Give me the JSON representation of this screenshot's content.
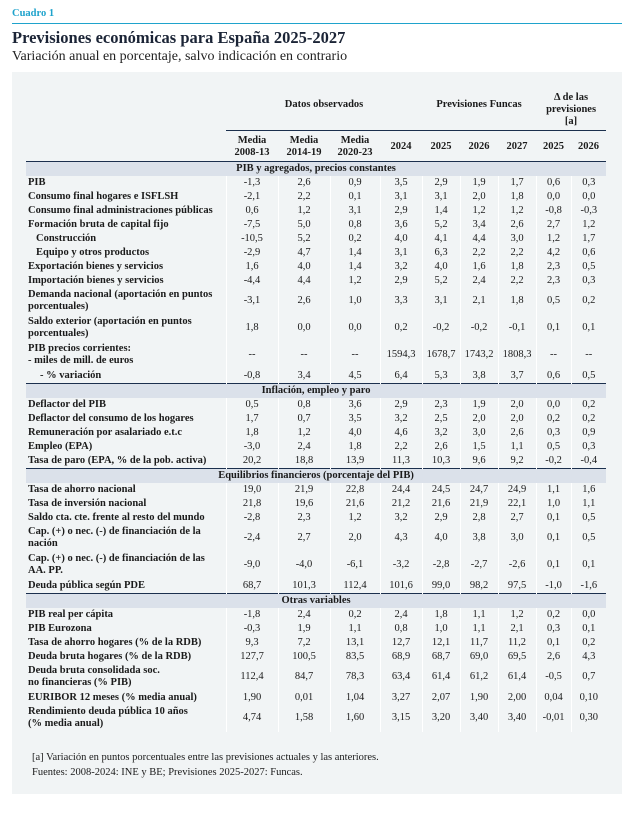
{
  "label": "Cuadro 1",
  "title": "Previsiones económicas para España 2025-2027",
  "subtitle": "Variación anual en porcentaje, salvo indicación en contrario",
  "colors": {
    "accent": "#1fa3cc",
    "navy": "#1b2f4d",
    "section_bg": "#dbe1ea",
    "panel_bg": "#f1f4f5"
  },
  "header": {
    "groups": [
      "Datos observados",
      "Previsiones Funcas",
      "Δ de las previsiones [a]"
    ],
    "columns": [
      "Media 2008-13",
      "Media 2014-19",
      "Media 2020-23",
      "2024",
      "2025",
      "2026",
      "2027",
      "2025",
      "2026"
    ]
  },
  "sections": [
    {
      "title": "PIB y agregados, precios constantes",
      "rows": [
        {
          "label": "PIB",
          "values": [
            "-1,3",
            "2,6",
            "0,9",
            "3,5",
            "2,9",
            "1,9",
            "1,7",
            "0,6",
            "0,3"
          ]
        },
        {
          "label": "Consumo final hogares e ISFLSH",
          "values": [
            "-2,1",
            "2,2",
            "0,1",
            "3,1",
            "3,1",
            "2,0",
            "1,8",
            "0,0",
            "0,0"
          ]
        },
        {
          "label": "Consumo final administraciones públicas",
          "values": [
            "0,6",
            "1,2",
            "3,1",
            "2,9",
            "1,4",
            "1,2",
            "1,2",
            "-0,8",
            "-0,3"
          ]
        },
        {
          "label": "Formación bruta de capital fijo",
          "values": [
            "-7,5",
            "5,0",
            "0,8",
            "3,6",
            "5,2",
            "3,4",
            "2,6",
            "2,7",
            "1,2"
          ]
        },
        {
          "label": "Construcción",
          "indent": 1,
          "values": [
            "-10,5",
            "5,2",
            "0,2",
            "4,0",
            "4,1",
            "4,4",
            "3,0",
            "1,2",
            "1,7"
          ]
        },
        {
          "label": "Equipo y otros productos",
          "indent": 1,
          "values": [
            "-2,9",
            "4,7",
            "1,4",
            "3,1",
            "6,3",
            "2,2",
            "2,2",
            "4,2",
            "0,6"
          ]
        },
        {
          "label": "Exportación bienes y servicios",
          "values": [
            "1,6",
            "4,0",
            "1,4",
            "3,2",
            "4,0",
            "1,6",
            "1,8",
            "2,3",
            "0,5"
          ]
        },
        {
          "label": "Importación bienes y servicios",
          "values": [
            "-4,4",
            "4,4",
            "1,2",
            "2,9",
            "5,2",
            "2,4",
            "2,2",
            "2,3",
            "0,3"
          ]
        },
        {
          "label": "Demanda nacional (aportación en puntos porcentuales)",
          "tall": true,
          "values": [
            "-3,1",
            "2,6",
            "1,0",
            "3,3",
            "3,1",
            "2,1",
            "1,8",
            "0,5",
            "0,2"
          ]
        },
        {
          "label": "Saldo exterior (aportación en puntos porcentuales)",
          "tall": true,
          "values": [
            "1,8",
            "0,0",
            "0,0",
            "0,2",
            "-0,2",
            "-0,2",
            "-0,1",
            "0,1",
            "0,1"
          ]
        },
        {
          "label": "PIB precios corrientes:\n - miles de mill. de euros",
          "tall": true,
          "values": [
            "--",
            "--",
            "--",
            "1594,3",
            "1678,7",
            "1743,2",
            "1808,3",
            "--",
            "--"
          ]
        },
        {
          "label": "- % variación",
          "indent": 2,
          "values": [
            "-0,8",
            "3,4",
            "4,5",
            "6,4",
            "5,3",
            "3,8",
            "3,7",
            "0,6",
            "0,5"
          ]
        }
      ]
    },
    {
      "title": "Inflación, empleo y paro",
      "rows": [
        {
          "label": "Deflactor del PIB",
          "values": [
            "0,5",
            "0,8",
            "3,6",
            "2,9",
            "2,3",
            "1,9",
            "2,0",
            "0,0",
            "0,2"
          ]
        },
        {
          "label": "Deflactor del consumo de los hogares",
          "values": [
            "1,7",
            "0,7",
            "3,5",
            "3,2",
            "2,5",
            "2,0",
            "2,0",
            "0,2",
            "0,2"
          ]
        },
        {
          "label": "Remuneración por asalariado e.t.c",
          "values": [
            "1,8",
            "1,2",
            "4,0",
            "4,6",
            "3,2",
            "3,0",
            "2,6",
            "0,3",
            "0,9"
          ]
        },
        {
          "label": "Empleo (EPA)",
          "values": [
            "-3,0",
            "2,4",
            "1,8",
            "2,2",
            "2,6",
            "1,5",
            "1,1",
            "0,5",
            "0,3"
          ]
        },
        {
          "label": "Tasa de paro (EPA, % de la pob. activa)",
          "values": [
            "20,2",
            "18,8",
            "13,9",
            "11,3",
            "10,3",
            "9,6",
            "9,2",
            "-0,2",
            "-0,4"
          ]
        }
      ]
    },
    {
      "title": "Equilibrios financieros (porcentaje del PIB)",
      "rows": [
        {
          "label": "Tasa de ahorro nacional",
          "values": [
            "19,0",
            "21,9",
            "22,8",
            "24,4",
            "24,5",
            "24,7",
            "24,9",
            "1,1",
            "1,6"
          ]
        },
        {
          "label": "Tasa de inversión nacional",
          "values": [
            "21,8",
            "19,6",
            "21,6",
            "21,2",
            "21,6",
            "21,9",
            "22,1",
            "1,0",
            "1,1"
          ]
        },
        {
          "label": "Saldo cta. cte. frente al resto del mundo",
          "values": [
            "-2,8",
            "2,3",
            "1,2",
            "3,2",
            "2,9",
            "2,8",
            "2,7",
            "0,1",
            "0,5"
          ]
        },
        {
          "label": "Cap. (+) o nec. (-) de financiación de la nación",
          "tall": true,
          "values": [
            "-2,4",
            "2,7",
            "2,0",
            "4,3",
            "4,0",
            "3,8",
            "3,0",
            "0,1",
            "0,5"
          ]
        },
        {
          "label": "Cap. (+) o nec. (-) de financiación de las AA. PP.",
          "tall": true,
          "values": [
            "-9,0",
            "-4,0",
            "-6,1",
            "-3,2",
            "-2,8",
            "-2,7",
            "-2,6",
            "0,1",
            "0,1"
          ]
        },
        {
          "label": "Deuda pública según PDE",
          "values": [
            "68,7",
            "101,3",
            "112,4",
            "101,6",
            "99,0",
            "98,2",
            "97,5",
            "-1,0",
            "-1,6"
          ]
        }
      ]
    },
    {
      "title": "Otras variables",
      "rows": [
        {
          "label": "PIB real per cápita",
          "values": [
            "-1,8",
            "2,4",
            "0,2",
            "2,4",
            "1,8",
            "1,1",
            "1,2",
            "0,2",
            "0,0"
          ]
        },
        {
          "label": "PIB Eurozona",
          "values": [
            "-0,3",
            "1,9",
            "1,1",
            "0,8",
            "1,0",
            "1,1",
            "2,1",
            "0,3",
            "0,1"
          ]
        },
        {
          "label": "Tasa de ahorro hogares (% de la RDB)",
          "values": [
            "9,3",
            "7,2",
            "13,1",
            "12,7",
            "12,1",
            "11,7",
            "11,2",
            "0,1",
            "0,2"
          ]
        },
        {
          "label": "Deuda bruta hogares (% de la RDB)",
          "values": [
            "127,7",
            "100,5",
            "83,5",
            "68,9",
            "68,7",
            "69,0",
            "69,5",
            "2,6",
            "4,3"
          ]
        },
        {
          "label": "Deuda bruta consolidada soc.\nno financieras (% PIB)",
          "tall": true,
          "values": [
            "112,4",
            "84,7",
            "78,3",
            "63,4",
            "61,4",
            "61,2",
            "61,4",
            "-0,5",
            "0,7"
          ]
        },
        {
          "label": "EURIBOR 12 meses (% media anual)",
          "values": [
            "1,90",
            "0,01",
            "1,04",
            "3,27",
            "2,07",
            "1,90",
            "2,00",
            "0,04",
            "0,10"
          ]
        },
        {
          "label": "Rendimiento deuda pública 10 años\n(% media anual)",
          "tall": true,
          "values": [
            "4,74",
            "1,58",
            "1,60",
            "3,15",
            "3,20",
            "3,40",
            "3,40",
            "-0,01",
            "0,30"
          ]
        }
      ]
    }
  ],
  "notes": [
    "[a] Variación en puntos porcentuales entre las previsiones actuales y las anteriores.",
    "Fuentes: 2008-2024: INE y BE; Previsiones 2025-2027: Funcas."
  ]
}
